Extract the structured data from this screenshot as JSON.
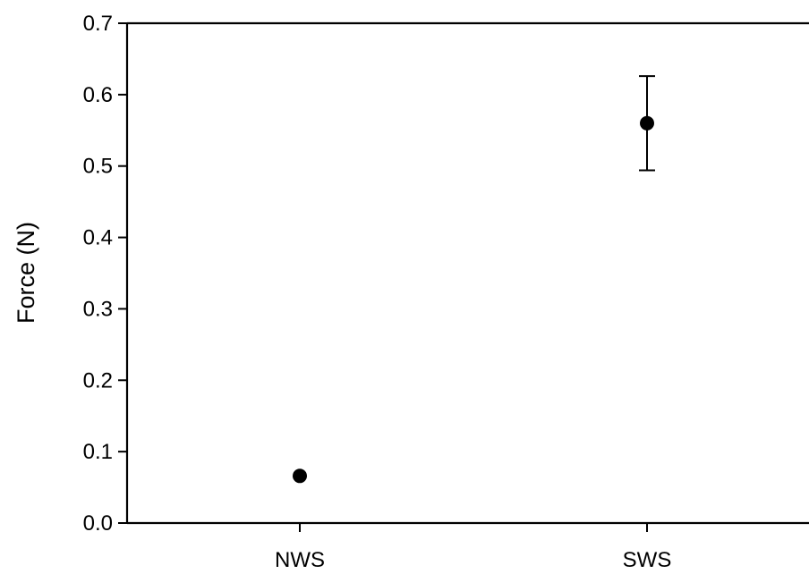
{
  "chart_data": {
    "type": "scatter",
    "title": "",
    "xlabel": "",
    "ylabel": "Force (N)",
    "categories": [
      "NWS",
      "SWS"
    ],
    "values": [
      0.066,
      0.56
    ],
    "error": [
      0.0,
      0.066
    ],
    "ylim": [
      0.0,
      0.7
    ],
    "yticks": [
      "0.0",
      "0.1",
      "0.2",
      "0.3",
      "0.4",
      "0.5",
      "0.6",
      "0.7"
    ],
    "grid": false,
    "legend": "none",
    "marker_color": "#000000"
  }
}
